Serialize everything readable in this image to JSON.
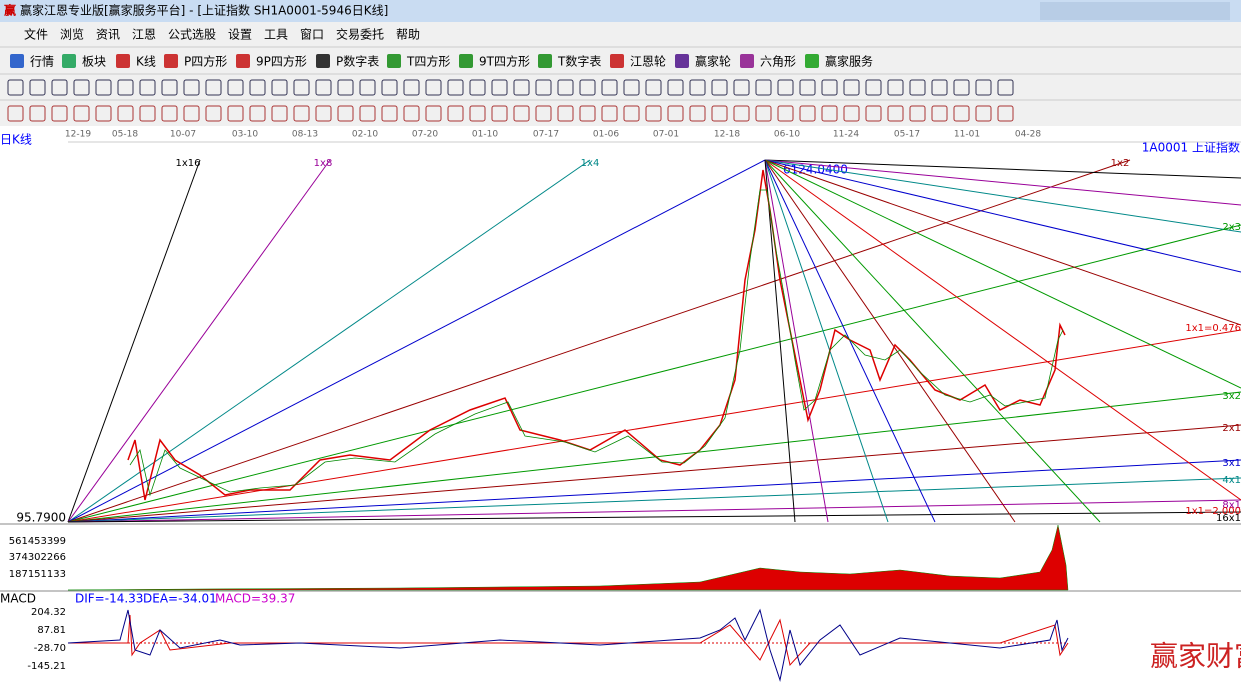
{
  "window": {
    "title": "赢家江恩专业版[赢家服务平台] - [上证指数  SH1A0001-5946日K线]"
  },
  "menu": [
    "文件",
    "浏览",
    "资讯",
    "江恩",
    "公式选股",
    "设置",
    "工具",
    "窗口",
    "交易委托",
    "帮助"
  ],
  "toolbar": [
    "行情",
    "板块",
    "K线",
    "P四方形",
    "9P四方形",
    "P数字表",
    "T四方形",
    "9T四方形",
    "T数字表",
    "江恩轮",
    "赢家轮",
    "六角形",
    "赢家服务"
  ],
  "dates": [
    "12-19",
    "05-18",
    "10-07",
    "03-10",
    "08-13",
    "02-10",
    "07-20",
    "01-10",
    "07-17",
    "01-06",
    "07-01",
    "12-18",
    "06-10",
    "11-24",
    "05-17",
    "11-01",
    "04-28"
  ],
  "chart": {
    "period": "日K线",
    "symbol": "1A0001  上证指数",
    "low": "95.7900",
    "high": "6124.0400",
    "fan_top": [
      "1x16",
      "1x8",
      "1x4",
      "1x2",
      "2x3"
    ],
    "fan_right": [
      "1x1=0.476",
      "3x2",
      "2x1",
      "3x1",
      "4x1",
      "8x1",
      "1x1=2.000",
      "16x1"
    ]
  },
  "volume": {
    "ticks": [
      "561453399",
      "374302266",
      "187151133"
    ]
  },
  "macd": {
    "name": "MACD",
    "dif": "DIF=-14.33",
    "dea": "DEA=-34.01",
    "macd": "MACD=39.37",
    "ticks": [
      "204.32",
      "87.81",
      "-28.70",
      "-145.21"
    ]
  },
  "watermark": "赢家财富网"
}
